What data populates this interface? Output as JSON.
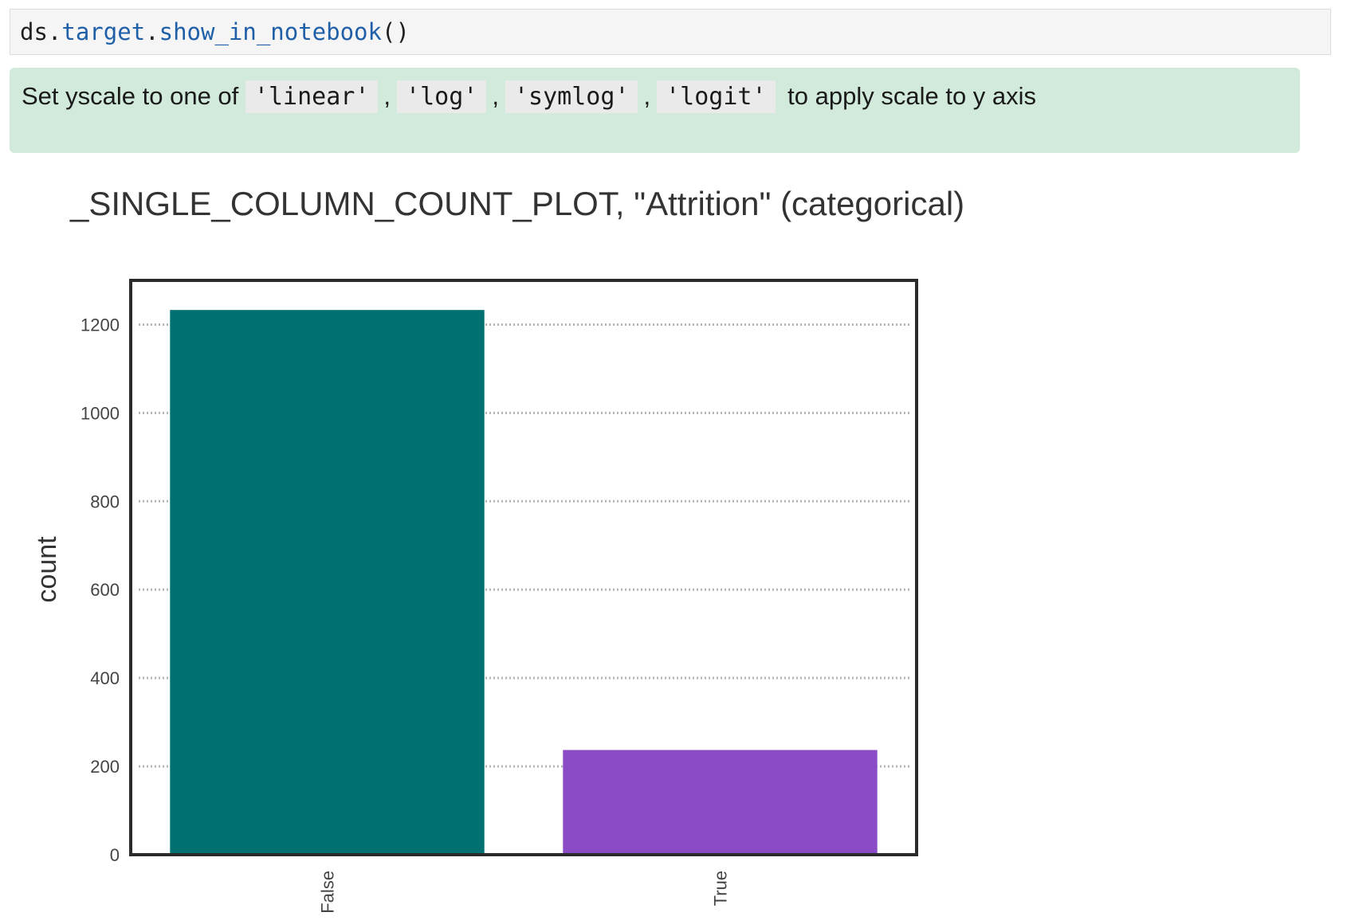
{
  "code_cell": {
    "obj": "ds",
    "dot1": ".",
    "attr1": "target",
    "dot2": ".",
    "method": "show_in_notebook",
    "parens": "()"
  },
  "info": {
    "prefix": "Set yscale to one of",
    "options": [
      "'linear'",
      "'log'",
      "'symlog'",
      "'logit'"
    ],
    "separator": ",",
    "suffix": "to apply scale to y axis",
    "background_color": "#d1eadb"
  },
  "chart_data": {
    "type": "bar",
    "title": "_SINGLE_COLUMN_COUNT_PLOT, \"Attrition\" (categorical)",
    "xlabel": "",
    "ylabel": "count",
    "categories": [
      "False",
      "True"
    ],
    "values": [
      1233,
      237
    ],
    "colors": [
      "#007070",
      "#8b4bc6"
    ],
    "ylim": [
      0,
      1300
    ],
    "yticks": [
      0,
      200,
      400,
      600,
      800,
      1000,
      1200
    ],
    "grid": "horizontal dotted",
    "legend": "none"
  }
}
